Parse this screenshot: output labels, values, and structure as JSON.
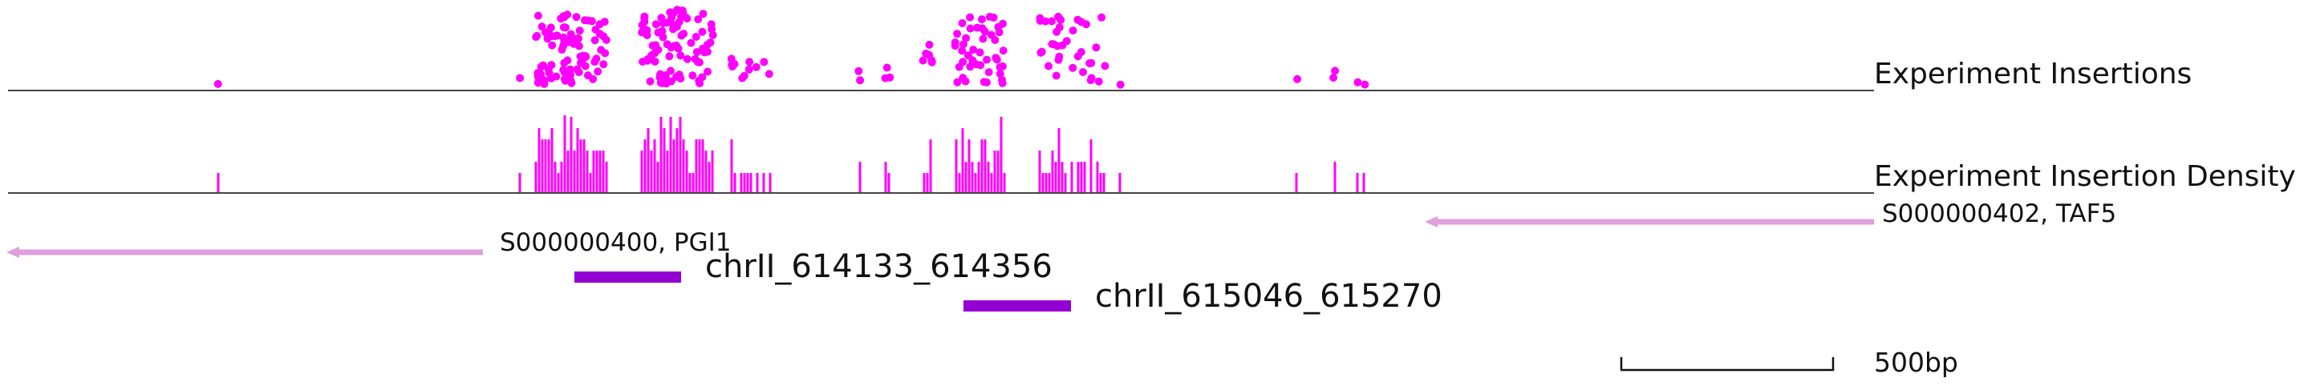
{
  "colors": {
    "insertion": "#ff00ff",
    "gene": "#dda0dd",
    "region": "#9400d3",
    "axis": "#444444"
  },
  "tracks": {
    "insertions_label": "Experiment Insertions",
    "density_label": "Experiment Insertion Density"
  },
  "genes": [
    {
      "label": "S000000400, PGI1",
      "strand": "-"
    },
    {
      "label": "S000000402, TAF5",
      "strand": "-"
    }
  ],
  "regions": [
    {
      "label": "chrII_614133_614356"
    },
    {
      "label": "chrII_615046_615270"
    }
  ],
  "scale_bar": {
    "label": "500bp"
  },
  "chart_data": {
    "type": "scatter",
    "x_unit": "bp",
    "genome_span_bp": 4400,
    "series": [
      {
        "name": "Experiment Insertions",
        "style": "dots"
      },
      {
        "name": "Experiment Insertion Density",
        "style": "bars"
      }
    ],
    "regions": [
      {
        "label": "chrII_614133_614356",
        "start_bp": 1334,
        "end_bp": 1557
      },
      {
        "label": "chrII_615046_615270",
        "start_bp": 2247,
        "end_bp": 2471
      }
    ],
    "scale_bar_bp": 500
  }
}
